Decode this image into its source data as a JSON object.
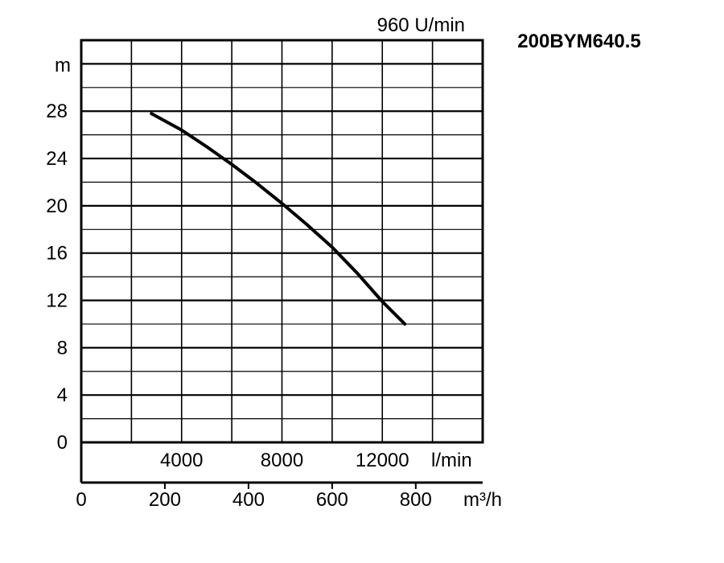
{
  "chart_data": {
    "type": "line",
    "title": "200BYM640.5",
    "speed_label": "960 U/min",
    "y_axis": {
      "unit": "m",
      "ticks": [
        0,
        4,
        8,
        12,
        16,
        20,
        24,
        28
      ],
      "ylim": [
        0,
        34
      ],
      "grid": true
    },
    "x_axis_lpm": {
      "unit": "l/min",
      "ticks": [
        4000,
        8000,
        12000
      ],
      "tick_labels": [
        "4000",
        "8000",
        "12000"
      ],
      "grid_step": 2000,
      "xlim": [
        0,
        16000
      ]
    },
    "x_axis_m3h": {
      "unit": "m³/h",
      "ticks": [
        0,
        200,
        400,
        600,
        800
      ],
      "tick_labels": [
        "0",
        "200",
        "400",
        "600",
        "800"
      ],
      "xlim": [
        0,
        960
      ]
    },
    "series": [
      {
        "color": "#000000",
        "points": [
          {
            "x": 2800,
            "y": 27.8
          },
          {
            "x": 4000,
            "y": 26.4
          },
          {
            "x": 5000,
            "y": 25.0
          },
          {
            "x": 6000,
            "y": 23.5
          },
          {
            "x": 7000,
            "y": 21.9
          },
          {
            "x": 8000,
            "y": 20.2
          },
          {
            "x": 9000,
            "y": 18.4
          },
          {
            "x": 10000,
            "y": 16.5
          },
          {
            "x": 11000,
            "y": 14.3
          },
          {
            "x": 12000,
            "y": 11.9
          },
          {
            "x": 12900,
            "y": 10.0
          }
        ]
      }
    ]
  }
}
